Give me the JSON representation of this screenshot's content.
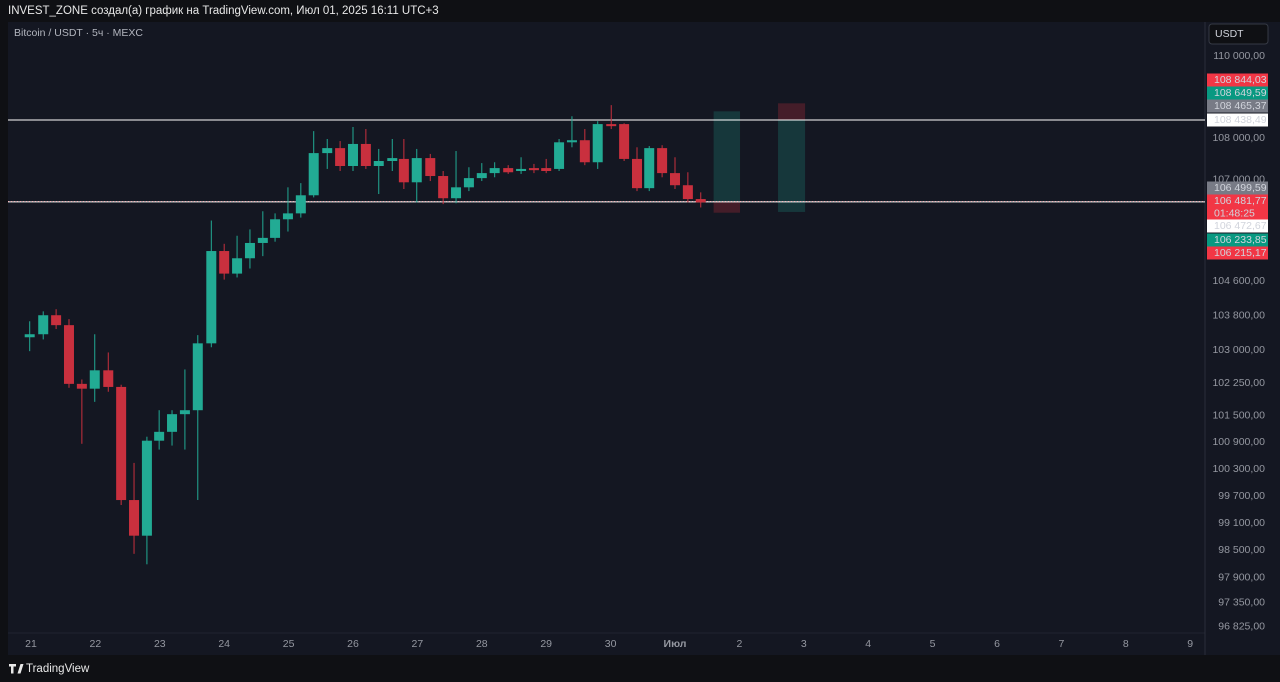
{
  "header": "INVEST_ZONE создал(а) график на TradingView.com, Июл 01, 2025 16:11 UTC+3",
  "footer": "TradingView",
  "chart_data": {
    "type": "candlestick",
    "symbol": "Bitcoin / USDT · 5ч · MEXC",
    "currency": "USDT",
    "log_scale": true,
    "grid": false,
    "up_color": "#22ab94",
    "down_color": "#c9303e",
    "xlim": [
      -0.357,
      18.23
    ],
    "xticks": [
      {
        "value": 0,
        "label": "21"
      },
      {
        "value": 1,
        "label": "22"
      },
      {
        "value": 2,
        "label": "23"
      },
      {
        "value": 3,
        "label": "24"
      },
      {
        "value": 4,
        "label": "25"
      },
      {
        "value": 5,
        "label": "26"
      },
      {
        "value": 6,
        "label": "27"
      },
      {
        "value": 7,
        "label": "28"
      },
      {
        "value": 8,
        "label": "29"
      },
      {
        "value": 9,
        "label": "30"
      },
      {
        "value": 10,
        "label": "Июл"
      },
      {
        "value": 11,
        "label": "2"
      },
      {
        "value": 12,
        "label": "3"
      },
      {
        "value": 13,
        "label": "4"
      },
      {
        "value": 14,
        "label": "5"
      },
      {
        "value": 15,
        "label": "6"
      },
      {
        "value": 16,
        "label": "7"
      },
      {
        "value": 17,
        "label": "8"
      },
      {
        "value": 18,
        "label": "9"
      }
    ],
    "ylim": [
      96220,
      110840
    ],
    "yticks": [
      {
        "value": 110000,
        "label": "110 000,00"
      },
      {
        "value": 108000,
        "label": "108 000,00"
      },
      {
        "value": 107000,
        "label": "107 000,00"
      },
      {
        "value": 104600,
        "label": "104 600,00"
      },
      {
        "value": 103800,
        "label": "103 800,00"
      },
      {
        "value": 103000,
        "label": "103 000,00"
      },
      {
        "value": 102250,
        "label": "102 250,00"
      },
      {
        "value": 101500,
        "label": "101 500,00"
      },
      {
        "value": 100900,
        "label": "100 900,00"
      },
      {
        "value": 100300,
        "label": "100 300,00"
      },
      {
        "value": 99700,
        "label": "99 700,00"
      },
      {
        "value": 99100,
        "label": "99 100,00"
      },
      {
        "value": 98500,
        "label": "98 500,00"
      },
      {
        "value": 97900,
        "label": "97 900,00"
      },
      {
        "value": 97350,
        "label": "97 350,00"
      },
      {
        "value": 96825,
        "label": "96 825,00"
      }
    ],
    "x": [
      -0.02,
      0.19,
      0.39,
      0.59,
      0.79,
      0.99,
      1.2,
      1.4,
      1.6,
      1.8,
      1.99,
      2.19,
      2.39,
      2.59,
      2.8,
      3.0,
      3.2,
      3.4,
      3.6,
      3.79,
      3.99,
      4.19,
      4.39,
      4.6,
      4.8,
      5.0,
      5.2,
      5.4,
      5.61,
      5.79,
      5.99,
      6.2,
      6.4,
      6.6,
      6.8,
      7.0,
      7.2,
      7.41,
      7.61,
      7.81,
      8.0,
      8.2,
      8.4,
      8.6,
      8.8,
      9.01,
      9.21,
      9.41,
      9.6,
      9.8,
      10.0,
      10.2,
      10.4
    ],
    "open": [
      103300,
      103370,
      103810,
      103580,
      102230,
      102120,
      102540,
      102160,
      99610,
      98820,
      100940,
      101140,
      101540,
      101630,
      103160,
      105310,
      104780,
      105140,
      105500,
      105620,
      106060,
      106200,
      106630,
      107640,
      107760,
      107330,
      107860,
      107330,
      107450,
      107500,
      106940,
      107520,
      107090,
      106560,
      106820,
      107040,
      107160,
      107280,
      107210,
      107280,
      107280,
      107260,
      107900,
      107950,
      107420,
      108340,
      108340,
      107500,
      106800,
      107760,
      107160,
      106870,
      106540
    ],
    "high": [
      103670,
      103900,
      103950,
      103720,
      102330,
      103370,
      102950,
      102210,
      100440,
      101030,
      101630,
      101630,
      102560,
      103350,
      106030,
      105480,
      105670,
      105820,
      106250,
      106200,
      106820,
      106920,
      108170,
      107980,
      107930,
      108270,
      108220,
      107740,
      107980,
      107980,
      107740,
      107620,
      107210,
      107690,
      107300,
      107400,
      107420,
      107350,
      107540,
      107380,
      107500,
      107980,
      108530,
      108220,
      108410,
      108800,
      108360,
      107780,
      107810,
      107830,
      107540,
      107180,
      106700
    ],
    "low": [
      102980,
      103250,
      103490,
      102140,
      100870,
      101820,
      102050,
      99500,
      98420,
      98190,
      100740,
      100830,
      100740,
      99610,
      103070,
      104640,
      104690,
      104900,
      105190,
      105530,
      105770,
      106100,
      106580,
      107260,
      107210,
      107210,
      107260,
      106660,
      107210,
      106780,
      106460,
      106970,
      106420,
      106440,
      106730,
      106970,
      107060,
      107140,
      107140,
      107160,
      107160,
      107210,
      107780,
      107350,
      107260,
      108220,
      107450,
      106730,
      106730,
      107060,
      106780,
      106460,
      106340
    ],
    "close": [
      103370,
      103810,
      103580,
      102230,
      102120,
      102540,
      102160,
      99610,
      98820,
      100940,
      101140,
      101540,
      101630,
      103160,
      105310,
      104780,
      105140,
      105500,
      105620,
      106060,
      106200,
      106630,
      107640,
      107760,
      107330,
      107860,
      107330,
      107450,
      107520,
      106940,
      107520,
      107090,
      106560,
      106820,
      107040,
      107160,
      107280,
      107180,
      107260,
      107230,
      107210,
      107900,
      107950,
      107420,
      108340,
      108290,
      107500,
      106800,
      107760,
      107160,
      106870,
      106540,
      106460
    ],
    "positions": [
      {
        "x": [
          10.6,
          11.01
        ],
        "target": 108649.59,
        "entry": 106472.67,
        "stop": 106215.17
      },
      {
        "x": [
          11.6,
          12.02
        ],
        "target": 106233.85,
        "entry": 108438.49,
        "stop": 108844.03
      }
    ],
    "price_labels": [
      {
        "value": 108844.03,
        "label": "108 844,03",
        "color": "#f23645"
      },
      {
        "value": 108649.59,
        "label": "108 649,59",
        "color": "#089981"
      },
      {
        "value": 108465.37,
        "label": "108 465,37",
        "color": "#787b86"
      },
      {
        "value": 108438.49,
        "label": "108 438,49",
        "color": "#ffffff",
        "line": "solid"
      },
      {
        "value": 106499.59,
        "label": "106 499,59",
        "color": "#787b86"
      },
      {
        "value": 106481.77,
        "label": "106 481,77",
        "color": "#f23645",
        "line": "dotted"
      },
      {
        "value": 106472.67,
        "label": "106 472,67",
        "color": "#ffffff",
        "line": "solid"
      },
      {
        "value": 106233.85,
        "label": "106 233,85",
        "color": "#089981"
      },
      {
        "value": 106215.17,
        "label": "106 215,17",
        "color": "#f23645"
      }
    ],
    "countdown": "01:48:25"
  }
}
